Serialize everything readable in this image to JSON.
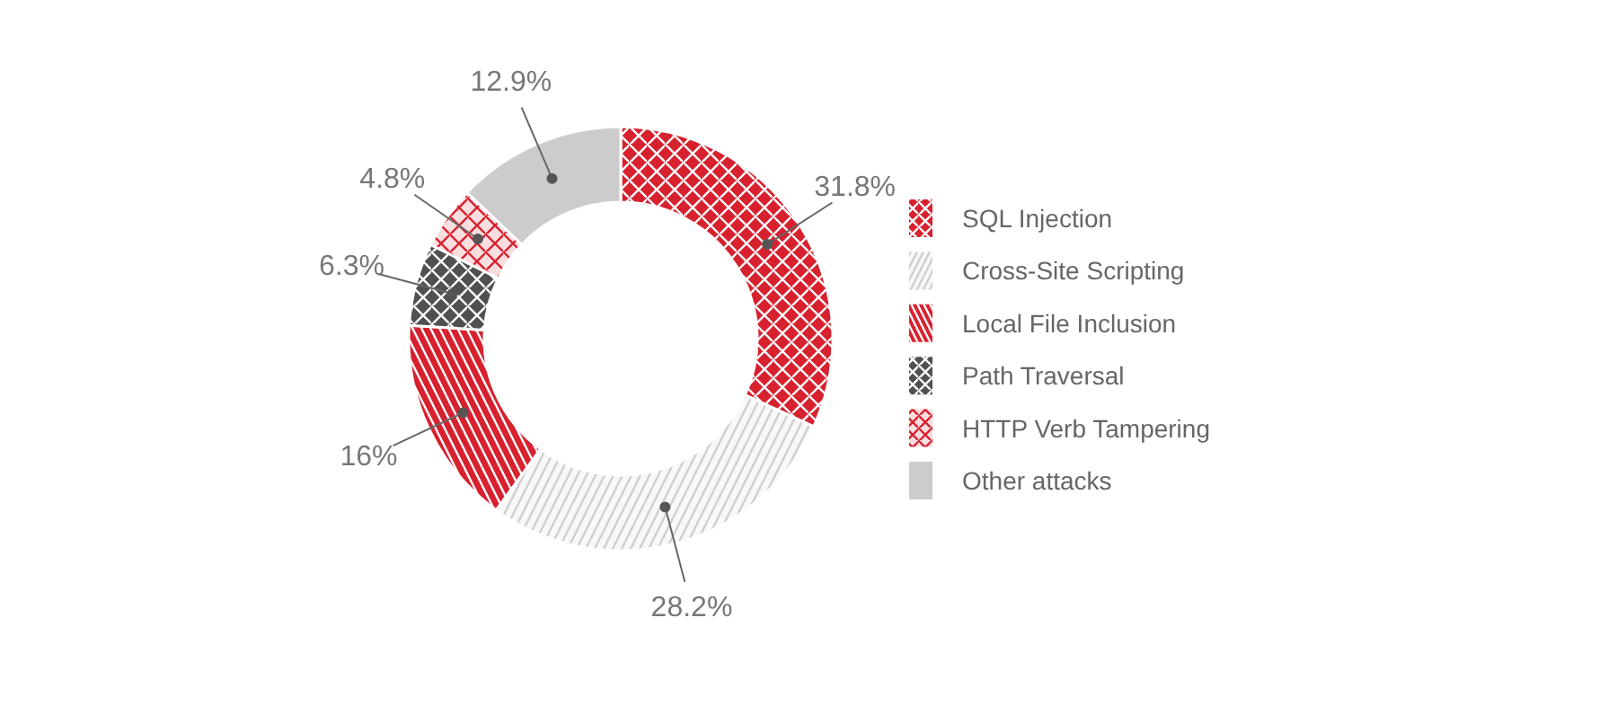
{
  "chart_data": {
    "type": "donut",
    "categories": [
      "SQL Injection",
      "Cross-Site Scripting",
      "Local File Inclusion",
      "Path Traversal",
      "HTTP Verb Tampering",
      "Other attacks"
    ],
    "values": [
      31.8,
      28.2,
      16,
      6.3,
      4.8,
      12.9
    ],
    "colors": [
      "#d7212f",
      "#cfcfcf",
      "#d7212f",
      "#505050",
      "#d7212f",
      "#cccccc"
    ],
    "value_labels": [
      "31.8%",
      "28.2%",
      "16%",
      "6.3%",
      "4.8%",
      "12.9%"
    ],
    "legend": "right"
  }
}
